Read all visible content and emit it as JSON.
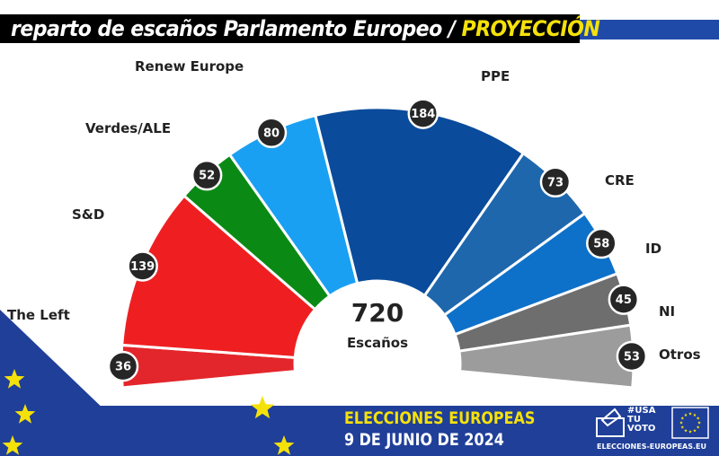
{
  "title": {
    "main": "reparto de escaños Parlamento Europeo / ",
    "accent": "PROYECCIÓN"
  },
  "chart_data": {
    "type": "parliament-hemicycle",
    "total": "720",
    "total_label": "Escaños",
    "parties": [
      {
        "name": "The Left",
        "seats": 36,
        "color": "#e3262b"
      },
      {
        "name": "S&D",
        "seats": 139,
        "color": "#ef1f21"
      },
      {
        "name": "Verdes/ALE",
        "seats": 52,
        "color": "#0a8a14"
      },
      {
        "name": "Renew Europe",
        "seats": 80,
        "color": "#1aa0f2"
      },
      {
        "name": "PPE",
        "seats": 184,
        "color": "#0a4b9b"
      },
      {
        "name": "CRE",
        "seats": 73,
        "color": "#1e67ad"
      },
      {
        "name": "ID",
        "seats": 58,
        "color": "#0e71c9"
      },
      {
        "name": "NI",
        "seats": 45,
        "color": "#6e6e6e"
      },
      {
        "name": "Otros",
        "seats": 53,
        "color": "#9c9c9c"
      }
    ]
  },
  "banner": {
    "line1": "ELECCIONES EUROPEAS",
    "line2": "9 DE JUNIO DE 2024",
    "hashtag": [
      "#USA",
      "TU",
      "VOTO"
    ],
    "url": "ELECCIONES-EUROPEAS.EU",
    "colors": {
      "blue": "#1f3f99",
      "yellow": "#f5e10a"
    }
  }
}
